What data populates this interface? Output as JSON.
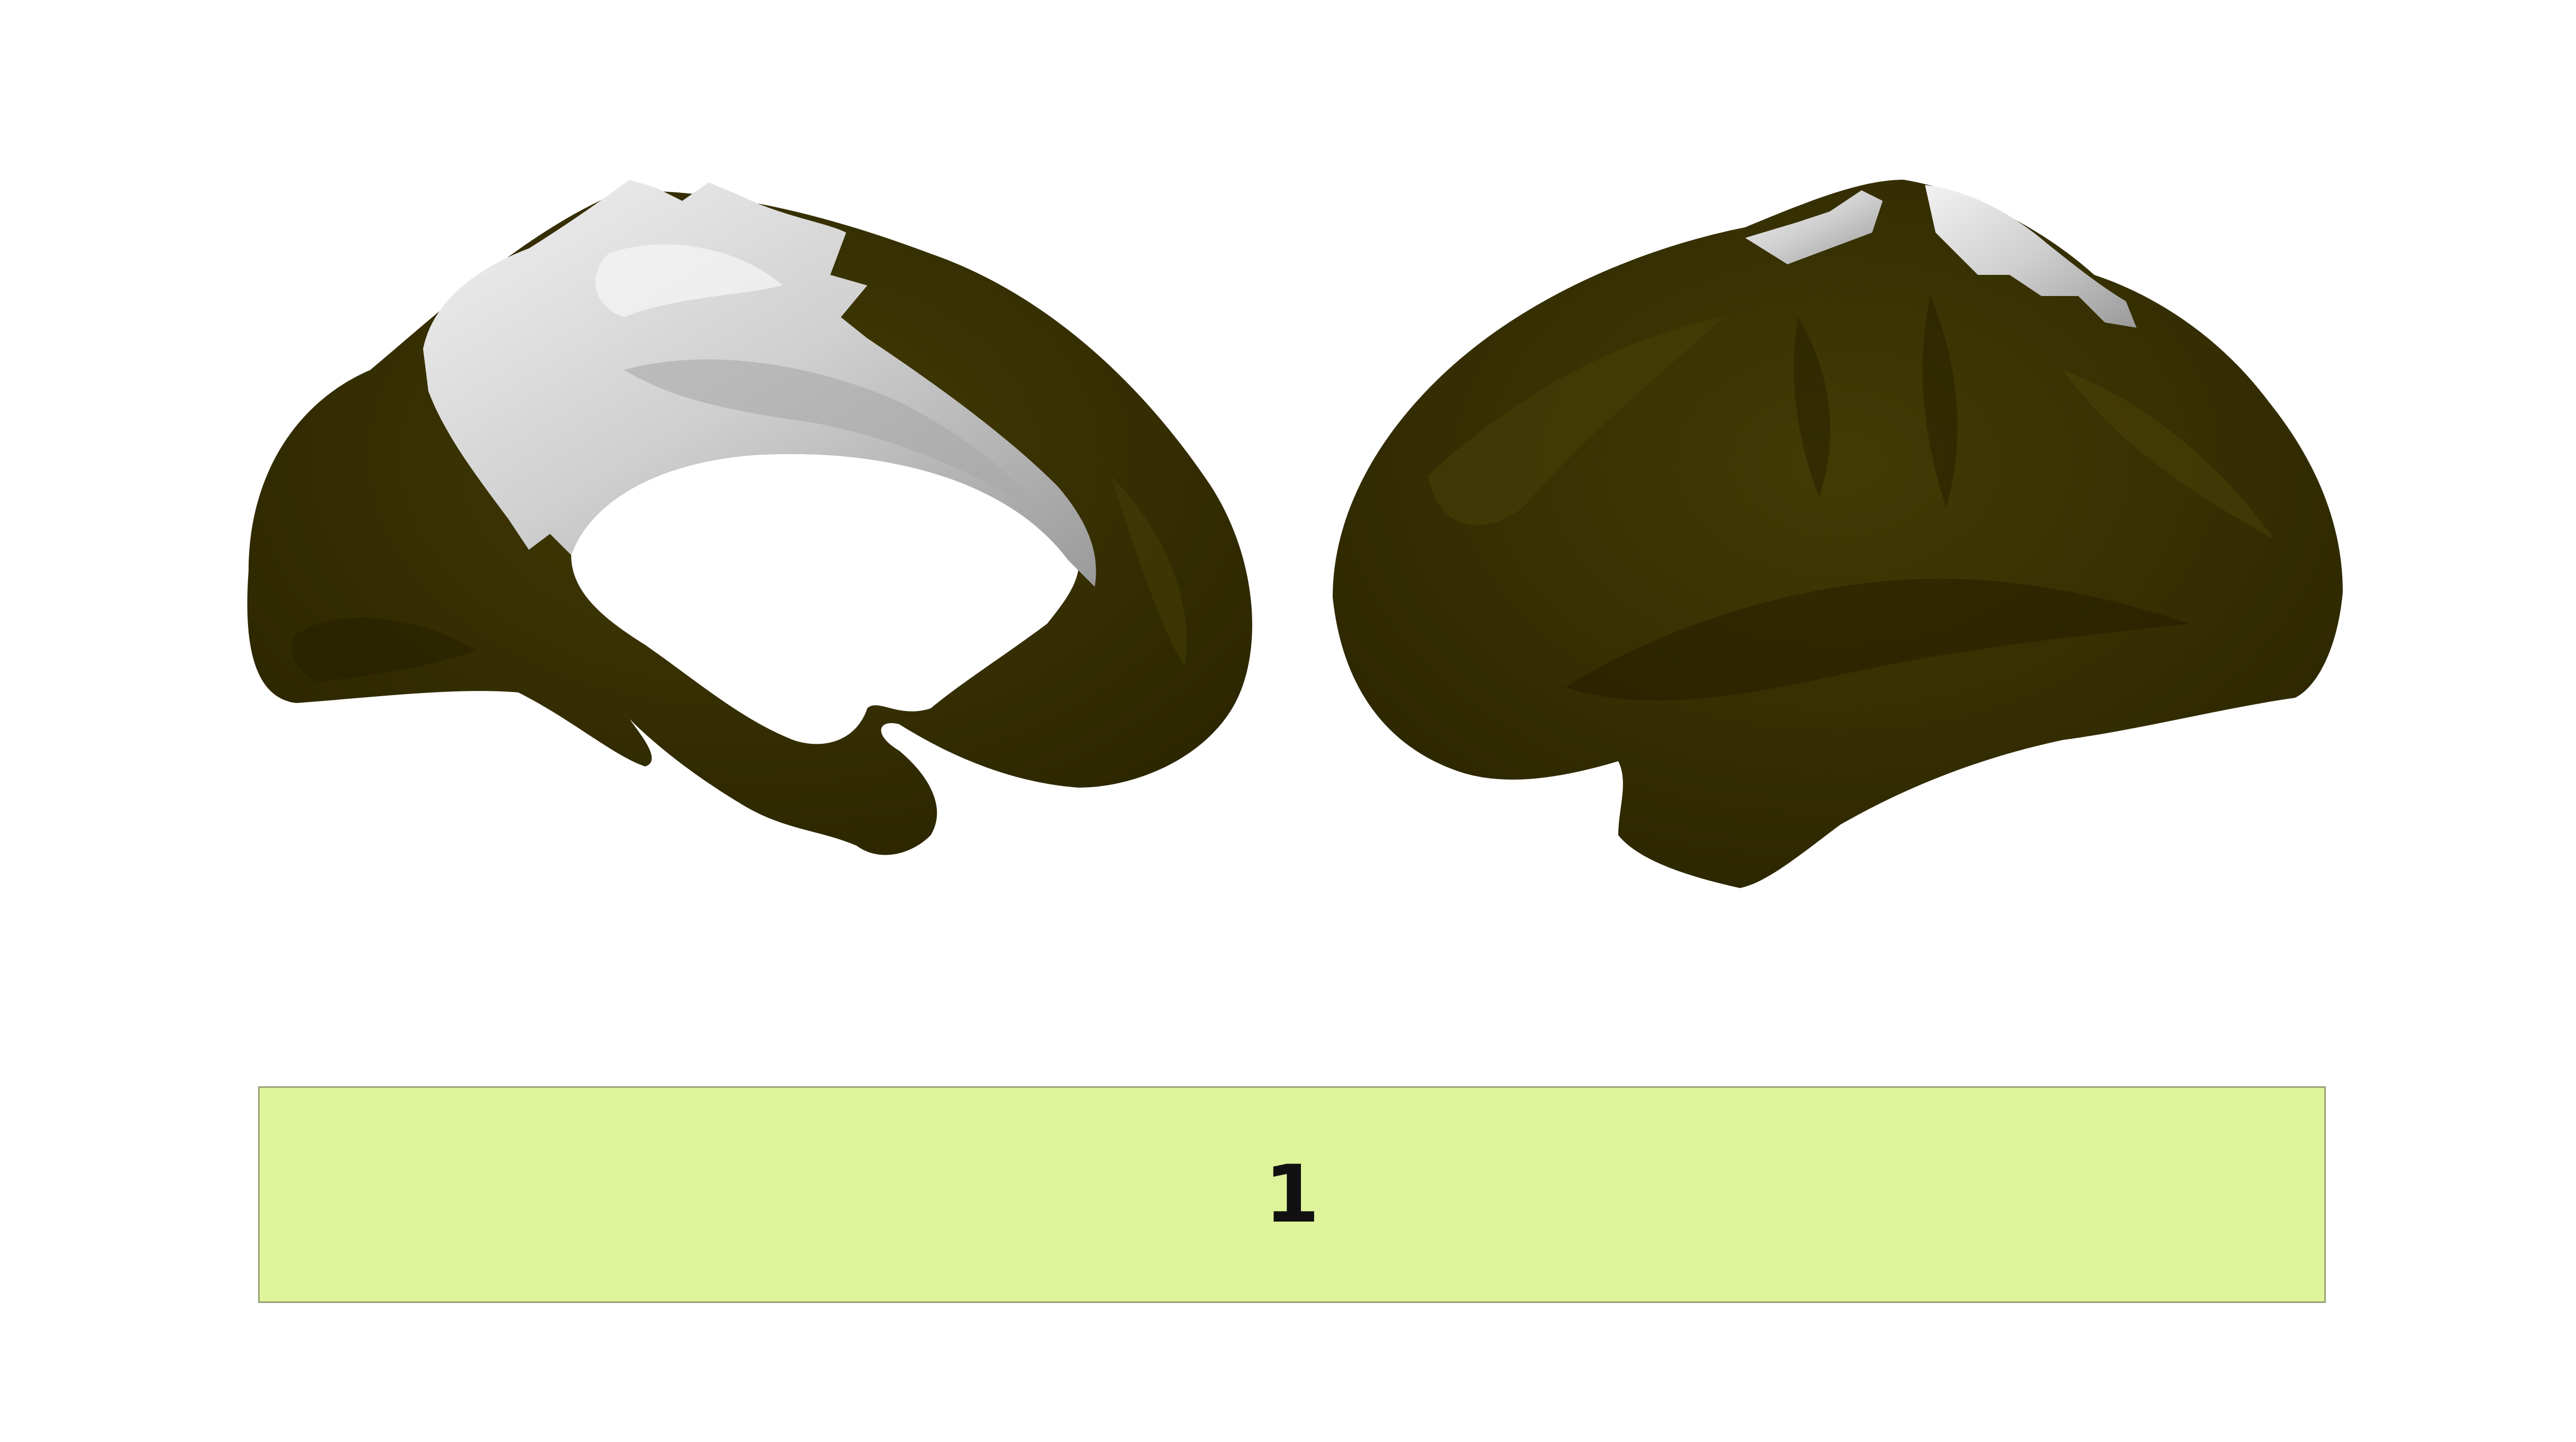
{
  "colors": {
    "background": "#ffffff",
    "parcel_fill": "#3a3300",
    "parcel_shade": "#2a2400",
    "parcel_highlight": "#4a4208",
    "unlabeled_fill": "#c9c9c9",
    "unlabeled_highlight": "#eeeeee",
    "legend_fill": "#dff39a"
  },
  "views": [
    {
      "name": "medial-view"
    },
    {
      "name": "lateral-view"
    }
  ],
  "legend": {
    "label": "1"
  }
}
